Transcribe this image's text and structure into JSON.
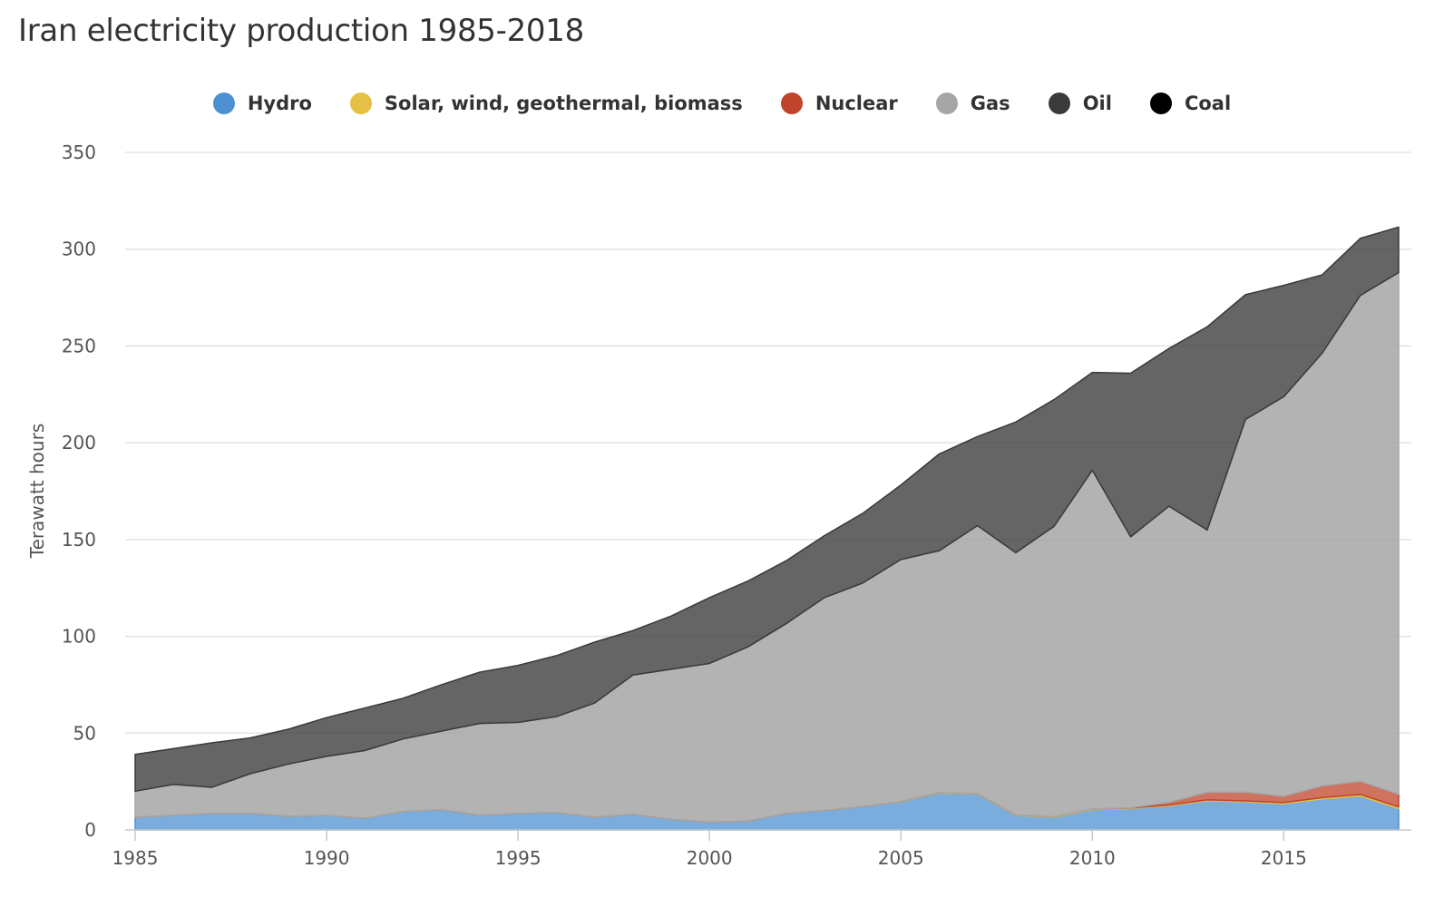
{
  "chart_data": {
    "type": "area",
    "stacked": true,
    "title": "Iran electricity production 1985-2018",
    "xlabel": "",
    "ylabel": "Terawatt hours",
    "ylim": [
      0,
      350
    ],
    "xlim": [
      1985,
      2018
    ],
    "yticks": [
      "0",
      "50",
      "100",
      "150",
      "200",
      "250",
      "300",
      "350"
    ],
    "xticks": [
      "1985",
      "1990",
      "1995",
      "2000",
      "2005",
      "2010",
      "2015"
    ],
    "grid": true,
    "legend_position": "top-center",
    "x": [
      1985,
      1986,
      1987,
      1988,
      1989,
      1990,
      1991,
      1992,
      1993,
      1994,
      1995,
      1996,
      1997,
      1998,
      1999,
      2000,
      2001,
      2002,
      2003,
      2004,
      2005,
      2006,
      2007,
      2008,
      2009,
      2010,
      2011,
      2012,
      2013,
      2014,
      2015,
      2016,
      2017,
      2018
    ],
    "series": [
      {
        "name": "Hydro",
        "color": "#4e91d2",
        "values": [
          6.5,
          7.5,
          8.5,
          8.5,
          7.0,
          7.5,
          6.0,
          9.5,
          10.5,
          7.5,
          8.5,
          9.0,
          6.5,
          8.0,
          5.5,
          4.0,
          4.5,
          8.5,
          10.0,
          12.0,
          14.5,
          19.0,
          18.5,
          7.5,
          6.5,
          10.5,
          11.0,
          12.5,
          15.0,
          14.5,
          13.5,
          16.0,
          17.5,
          11.0
        ]
      },
      {
        "name": "Solar, wind, geothermal, biomass",
        "color": "#e6c042",
        "values": [
          0,
          0,
          0,
          0,
          0,
          0,
          0,
          0,
          0,
          0,
          0,
          0,
          0,
          0,
          0,
          0,
          0,
          0,
          0,
          0,
          0.2,
          0.2,
          0.2,
          0.2,
          0.3,
          0.3,
          0.3,
          0.4,
          0.5,
          0.5,
          0.6,
          0.7,
          0.8,
          0.9
        ]
      },
      {
        "name": "Nuclear",
        "color": "#c0432b",
        "values": [
          0,
          0,
          0,
          0,
          0,
          0,
          0,
          0,
          0,
          0,
          0,
          0,
          0,
          0,
          0,
          0,
          0,
          0,
          0,
          0,
          0,
          0,
          0,
          0,
          0,
          0,
          0.1,
          1.3,
          3.9,
          4.5,
          3.2,
          6.0,
          6.8,
          6.5
        ]
      },
      {
        "name": "Gas",
        "color": "#a6a6a6",
        "values": [
          13.5,
          16.0,
          13.5,
          20.5,
          27.0,
          30.5,
          35.0,
          37.5,
          40.5,
          47.5,
          47.0,
          49.5,
          59.0,
          72.0,
          77.5,
          82.0,
          90.0,
          98.0,
          110.0,
          115.5,
          125.0,
          125.0,
          138.5,
          135.5,
          150.0,
          175.0,
          140.0,
          153.0,
          135.5,
          192.5,
          206.5,
          223.5,
          251.0,
          269.5
        ]
      },
      {
        "name": "Oil",
        "color": "#3a3a3a",
        "values": [
          19.0,
          18.5,
          23.0,
          18.5,
          18.0,
          20.0,
          22.0,
          21.0,
          24.0,
          26.5,
          29.5,
          31.5,
          31.5,
          23.0,
          27.5,
          34.0,
          34.0,
          32.5,
          32.0,
          36.0,
          38.5,
          50.0,
          46.0,
          67.5,
          65.5,
          50.5,
          84.5,
          81.5,
          105.0,
          64.5,
          57.5,
          40.5,
          29.5,
          23.5
        ]
      },
      {
        "name": "Coal",
        "color": "#000000",
        "values": [
          0,
          0,
          0,
          0,
          0,
          0,
          0,
          0,
          0,
          0,
          0,
          0,
          0,
          0,
          0,
          0,
          0,
          0,
          0,
          0,
          0,
          0,
          0,
          0,
          0,
          0,
          0,
          0,
          0,
          0,
          0,
          0,
          0,
          0
        ]
      }
    ]
  }
}
